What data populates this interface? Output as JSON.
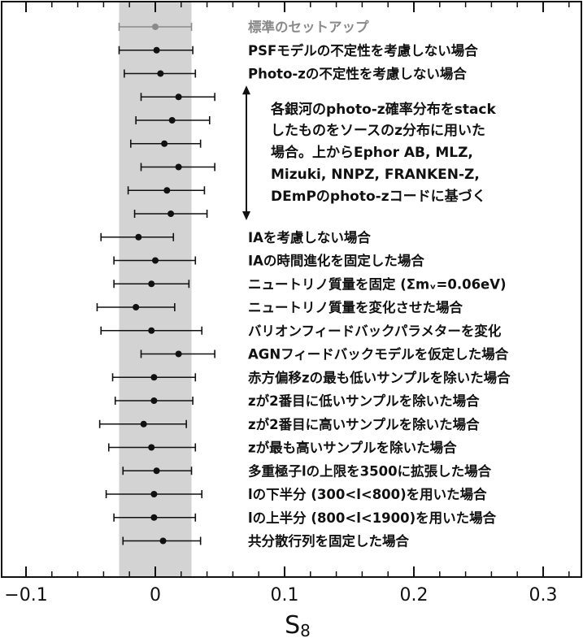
{
  "chart_data": {
    "type": "scatter",
    "xlabel": "S",
    "xlabel_subscript": "8",
    "xlim": [
      -0.1,
      0.32
    ],
    "xticks": [
      -0.1,
      0,
      0.1,
      0.2,
      0.3
    ],
    "xtick_labels": [
      "−0.1",
      "0",
      "0.1",
      "0.2",
      "0.3"
    ],
    "reference_band": [
      -0.028,
      0.028
    ],
    "reference_band_color": "#d3d3d3",
    "point_color": "#111111",
    "reference_color": "#8a8a8a",
    "grid": false,
    "rows": [
      {
        "label": "標準のセットアップ",
        "x": 0.0,
        "lo": -0.028,
        "hi": 0.028,
        "reference": true
      },
      {
        "label": "PSFモデルの不定性を考慮しない場合",
        "x": 0.001,
        "lo": -0.028,
        "hi": 0.029
      },
      {
        "label": "Photo-zの不定性を考慮しない場合",
        "x": 0.004,
        "lo": -0.024,
        "hi": 0.031
      },
      {
        "label": "",
        "x": 0.018,
        "lo": -0.011,
        "hi": 0.046
      },
      {
        "label": "",
        "x": 0.013,
        "lo": -0.015,
        "hi": 0.042
      },
      {
        "label": "",
        "x": 0.007,
        "lo": -0.019,
        "hi": 0.035
      },
      {
        "label": "",
        "x": 0.018,
        "lo": -0.011,
        "hi": 0.046
      },
      {
        "label": "",
        "x": 0.009,
        "lo": -0.021,
        "hi": 0.038
      },
      {
        "label": "",
        "x": 0.012,
        "lo": -0.016,
        "hi": 0.04
      },
      {
        "label": "IAを考慮しない場合",
        "x": -0.013,
        "lo": -0.042,
        "hi": 0.014
      },
      {
        "label": "IAの時間進化を固定した場合",
        "x": 0.0,
        "lo": -0.032,
        "hi": 0.031
      },
      {
        "label": "ニュートリノ質量を固定 (Σmᵥ=0.06eV)",
        "x": -0.003,
        "lo": -0.032,
        "hi": 0.026
      },
      {
        "label": "ニュートリノ質量を変化させた場合",
        "x": -0.015,
        "lo": -0.045,
        "hi": 0.015
      },
      {
        "label": "バリオンフィードバックパラメターを変化",
        "x": -0.003,
        "lo": -0.042,
        "hi": 0.036
      },
      {
        "label": "AGNフィードバックモデルを仮定した場合",
        "x": 0.018,
        "lo": -0.011,
        "hi": 0.046
      },
      {
        "label": "赤方偏移zの最も低いサンプルを除いた場合",
        "x": -0.001,
        "lo": -0.033,
        "hi": 0.031
      },
      {
        "label": "zが2番目に低いサンプルを除いた場合",
        "x": -0.001,
        "lo": -0.031,
        "hi": 0.029
      },
      {
        "label": "zが2番目に高いサンプルを除いた場合",
        "x": -0.009,
        "lo": -0.043,
        "hi": 0.024
      },
      {
        "label": "zが最も高いサンプルを除いた場合",
        "x": -0.003,
        "lo": -0.036,
        "hi": 0.031
      },
      {
        "label": "多重極子lの上限を3500に拡張した場合",
        "x": 0.001,
        "lo": -0.025,
        "hi": 0.028
      },
      {
        "label": "lの下半分 (300<l<800)を用いた場合",
        "x": -0.001,
        "lo": -0.038,
        "hi": 0.036
      },
      {
        "label": "lの上半分 (800<l<1900)を用いた場合",
        "x": -0.001,
        "lo": -0.032,
        "hi": 0.031
      },
      {
        "label": "共分散行列を固定した場合",
        "x": 0.006,
        "lo": -0.025,
        "hi": 0.035
      }
    ],
    "annotation": {
      "lines": [
        "各銀河のphoto-z確率分布をstack",
        "したものをソースのz分布に用いた",
        "場合。上からEphor AB, MLZ,",
        "Mizuki, NNPZ, FRANKEN-Z,",
        "DEmPのphoto-zコードに基づく"
      ],
      "arrow": "double-headed vertical"
    }
  }
}
